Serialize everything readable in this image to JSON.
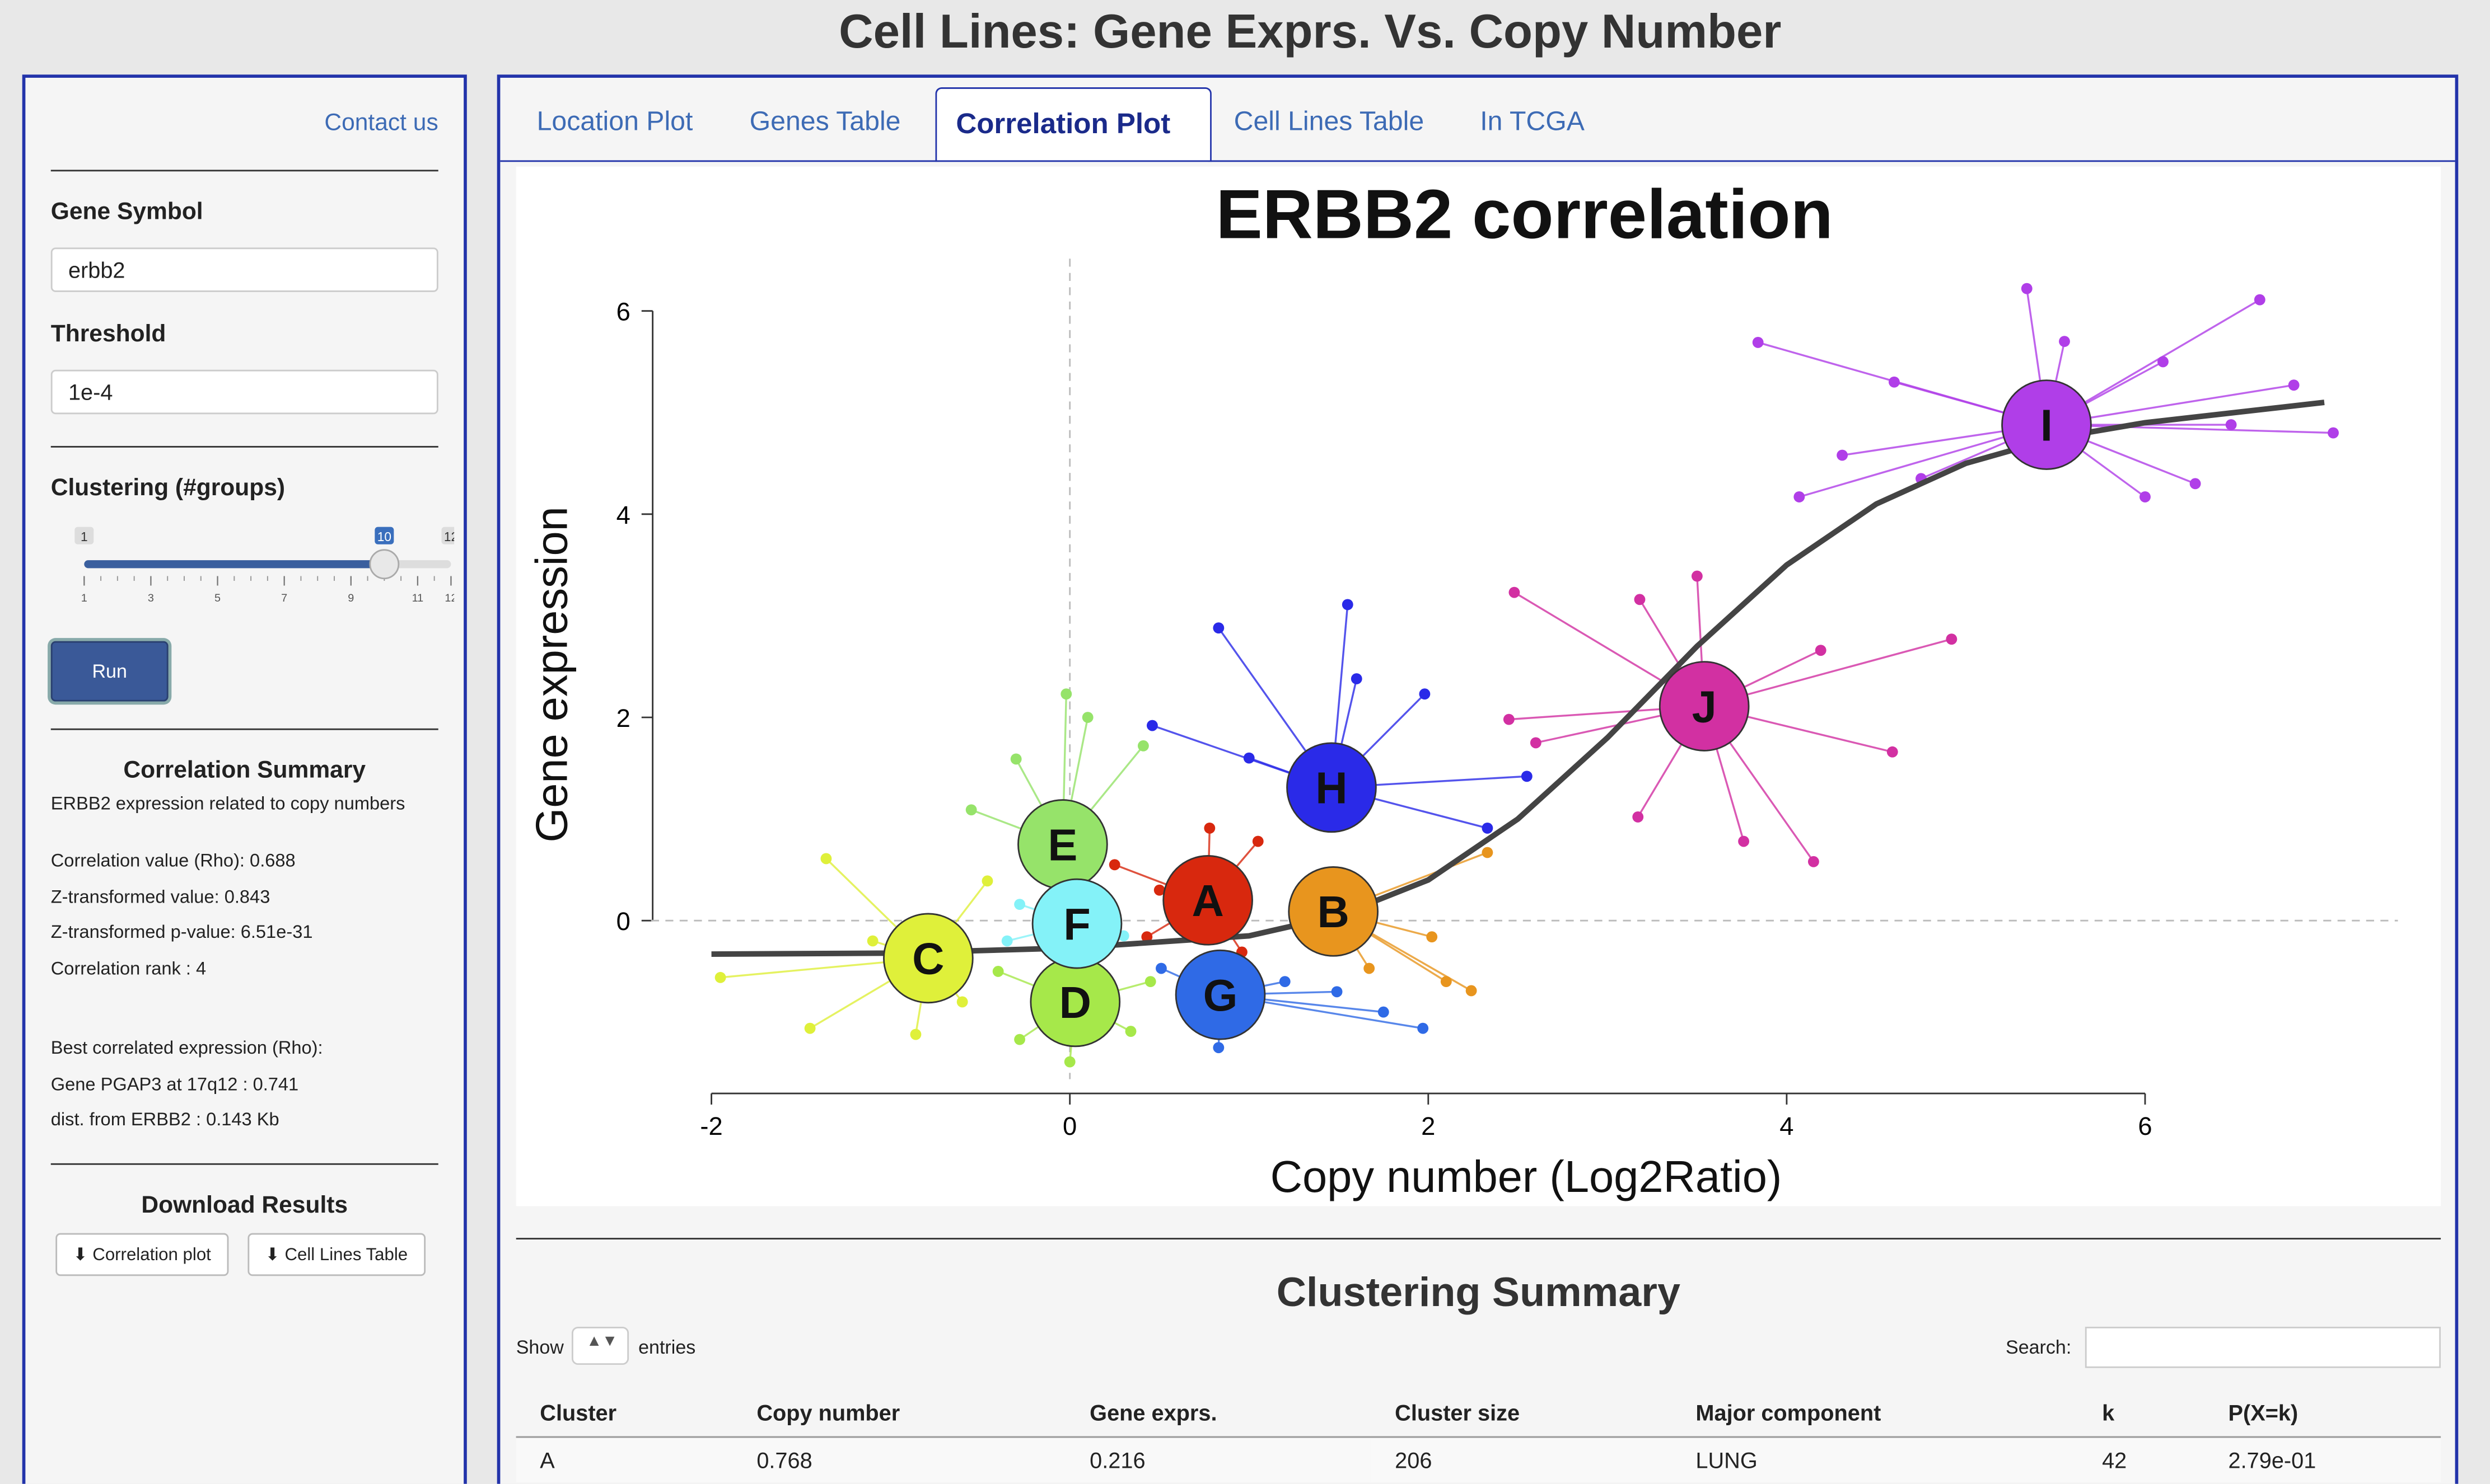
{
  "header": {
    "title": "Cell Lines: Gene Exprs. Vs. Copy Number"
  },
  "sidebar": {
    "contact": "Contact us",
    "gene_label": "Gene Symbol",
    "gene_value": "erbb2",
    "threshold_label": "Threshold",
    "threshold_value": "1e-4",
    "clustering_label": "Clustering (#groups)",
    "slider": {
      "min": 1,
      "max": 12,
      "value": 10,
      "ticks": [
        1,
        3,
        5,
        7,
        9,
        11,
        12
      ]
    },
    "run": "Run",
    "summary_title": "Correlation Summary",
    "summary_lines": [
      "ERBB2 expression related to copy numbers",
      "Correlation value (Rho): 0.688",
      "Z-transformed value: 0.843",
      "Z-transformed p-value: 6.51e-31",
      "Correlation rank : 4"
    ],
    "best_lines": [
      "Best correlated expression (Rho):",
      "Gene PGAP3 at 17q12 : 0.741",
      "dist. from ERBB2 : 0.143 Kb"
    ],
    "download_title": "Download Results",
    "download_buttons": [
      "Correlation plot",
      "Cell Lines Table"
    ]
  },
  "tabs": [
    "Location Plot",
    "Genes Table",
    "Correlation Plot",
    "Cell Lines Table",
    "In TCGA"
  ],
  "chart_data": {
    "type": "scatter",
    "title": "ERBB2 correlation",
    "xlabel": "Copy number (Log2Ratio)",
    "ylabel": "Gene expression",
    "xlim": [
      -3.09,
      7.65
    ],
    "ylim": [
      -2.81,
      7.42
    ],
    "xticks": [
      -2,
      0,
      2,
      4,
      6
    ],
    "yticks": [
      0,
      2,
      4,
      6
    ],
    "reference_lines": {
      "x": 0,
      "y": 0
    },
    "curve": {
      "x": [
        -2,
        -1,
        0,
        1,
        1.5,
        2,
        2.5,
        3,
        3.5,
        4,
        4.5,
        5,
        5.5,
        6,
        7
      ],
      "y": [
        -0.33,
        -0.32,
        -0.27,
        -0.15,
        0.05,
        0.4,
        1.0,
        1.8,
        2.7,
        3.5,
        4.1,
        4.5,
        4.75,
        4.9,
        5.1
      ]
    },
    "clusters": [
      {
        "name": "C",
        "color": "#dff03a",
        "cx": -0.79,
        "cy": -0.37,
        "x": [
          -1.95,
          -1.36,
          -1.45,
          -0.86,
          -0.46,
          -1.1,
          -0.6
        ],
        "y": [
          -0.56,
          0.61,
          -1.06,
          -1.12,
          0.39,
          -0.2,
          -0.8
        ]
      },
      {
        "name": "D",
        "color": "#a6e84a",
        "cx": 0.03,
        "cy": -0.8,
        "x": [
          0,
          -0.28,
          0.34,
          0.45,
          -0.4
        ],
        "y": [
          -1.39,
          -1.17,
          -1.09,
          -0.6,
          -0.5
        ]
      },
      {
        "name": "E",
        "color": "#96e36a",
        "cx": -0.04,
        "cy": 0.75,
        "x": [
          -0.02,
          -0.3,
          0.41,
          -0.55,
          0.1
        ],
        "y": [
          2.23,
          1.59,
          1.72,
          1.09,
          2.0
        ]
      },
      {
        "name": "F",
        "color": "#84f2f8",
        "cx": 0.04,
        "cy": -0.03,
        "x": [
          -0.28,
          0.25,
          -0.35,
          0.3
        ],
        "y": [
          0.16,
          0.08,
          -0.2,
          -0.15
        ]
      },
      {
        "name": "G",
        "color": "#2f6ae6",
        "cx": 0.84,
        "cy": -0.73,
        "x": [
          1.97,
          1.49,
          0.51,
          0.83,
          1.75,
          1.2
        ],
        "y": [
          -1.06,
          -0.7,
          -0.47,
          -1.25,
          -0.9,
          -0.6
        ]
      },
      {
        "name": "A",
        "color": "#d8280e",
        "cx": 0.77,
        "cy": 0.2,
        "x": [
          0.25,
          1.05,
          0.43,
          0.96,
          0.78,
          0.5
        ],
        "y": [
          0.55,
          0.78,
          -0.16,
          -0.31,
          0.91,
          0.3
        ]
      },
      {
        "name": "B",
        "color": "#e8951e",
        "cx": 1.47,
        "cy": 0.09,
        "x": [
          2.24,
          2.33,
          2.02,
          1.67,
          2.1
        ],
        "y": [
          -0.69,
          0.67,
          -0.16,
          -0.47,
          -0.6
        ]
      },
      {
        "name": "H",
        "color": "#2a2ae8",
        "cx": 1.46,
        "cy": 1.31,
        "x": [
          1.55,
          0.83,
          1.98,
          2.55,
          0.46,
          1.6,
          2.33,
          1.0
        ],
        "y": [
          3.11,
          2.88,
          2.23,
          1.42,
          1.92,
          2.38,
          0.91,
          1.6
        ]
      },
      {
        "name": "J",
        "color": "#d230a2",
        "cx": 3.54,
        "cy": 2.11,
        "x": [
          3.5,
          2.48,
          4.92,
          4.59,
          4.15,
          3.17,
          2.45,
          4.19,
          3.76,
          3.18,
          2.6
        ],
        "y": [
          3.39,
          3.23,
          2.77,
          1.66,
          0.58,
          1.02,
          1.98,
          2.66,
          0.78,
          3.16,
          1.75
        ]
      },
      {
        "name": "I",
        "color": "#b03ee8",
        "cx": 5.45,
        "cy": 4.88,
        "x": [
          5.34,
          6.64,
          3.84,
          7.05,
          6.83,
          4.07,
          6.0,
          4.31,
          6.48,
          6.28,
          4.6,
          5.55,
          4.75,
          6.1
        ],
        "y": [
          6.22,
          6.11,
          5.69,
          4.8,
          5.27,
          4.17,
          4.17,
          4.58,
          4.88,
          4.3,
          5.3,
          5.7,
          4.35,
          5.5
        ]
      }
    ]
  },
  "clustering_summary": {
    "title": "Clustering Summary",
    "show": "Show",
    "entries": "entries",
    "search": "Search:",
    "columns": [
      "Cluster",
      "Copy number",
      "Gene exprs.",
      "Cluster size",
      "Major component",
      "k",
      "P(X=k)"
    ],
    "rows": [
      [
        "A",
        "0.768",
        "0.216",
        "206",
        "LUNG",
        "42",
        "2.79e-01"
      ]
    ]
  }
}
